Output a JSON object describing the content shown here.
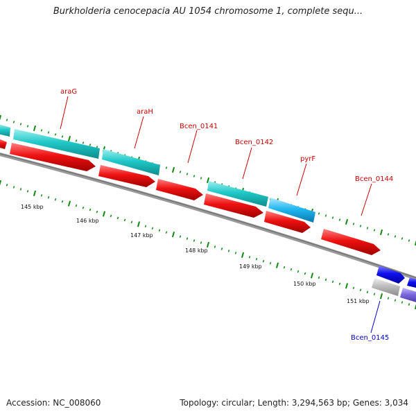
{
  "title": "Burkholderia cenocepacia AU 1054 chromosome 1, complete sequ...",
  "footer": {
    "accession": "Accession: NC_008060",
    "summary": "Topology: circular; Length: 3,294,563 bp; Genes: 3,034"
  },
  "colors": {
    "forward_gene": "#20c8c8",
    "reverse_gene": "#ee1111",
    "light_blue_gene": "#22b8f0",
    "dark_blue_gene": "#1010ee",
    "gray_gene": "#bdbdbd",
    "purple_gene": "#7a66dd",
    "backbone": "#808080",
    "tick": "#118811",
    "label_red": "#cc0000",
    "label_blue": "#0000cc"
  },
  "gene_labels": [
    {
      "text": "araG",
      "color": "red"
    },
    {
      "text": "araH",
      "color": "red"
    },
    {
      "text": "Bcen_0141",
      "color": "red"
    },
    {
      "text": "Bcen_0142",
      "color": "red"
    },
    {
      "text": "pyrF",
      "color": "red"
    },
    {
      "text": "Bcen_0144",
      "color": "red"
    },
    {
      "text": "Bcen_0145",
      "color": "blue"
    }
  ],
  "kbp_labels": [
    "145 kbp",
    "146 kbp",
    "147 kbp",
    "148 kbp",
    "149 kbp",
    "150 kbp",
    "151 kbp"
  ]
}
